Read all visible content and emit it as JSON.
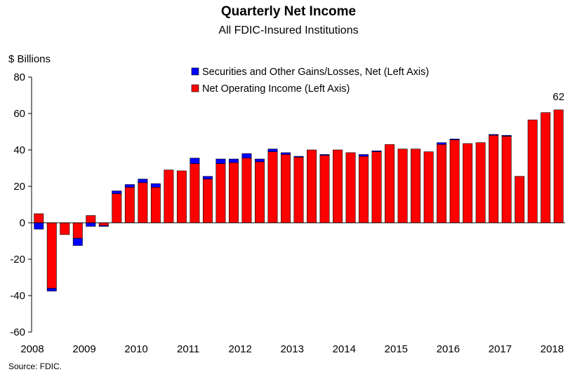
{
  "chart_data": {
    "type": "bar",
    "stacked": true,
    "title": "Quarterly Net Income",
    "subtitle": "All FDIC-Insured Institutions",
    "ylabel": "$ Billions",
    "source": "Source:  FDIC.",
    "ylim": [
      -60,
      80
    ],
    "yticks": [
      80,
      60,
      40,
      20,
      0,
      -20,
      -40,
      -60
    ],
    "xtick_labels": [
      "2008",
      "2009",
      "2010",
      "2011",
      "2012",
      "2013",
      "2014",
      "2015",
      "2016",
      "2017",
      "2018"
    ],
    "grid": false,
    "legend_position": "top",
    "annotation": {
      "text": "62",
      "index": 40
    },
    "series": [
      {
        "name": "Securities and Other Gains/Losses, Net  (Left Axis)",
        "color": "#0000FF",
        "values": [
          -3.5,
          -1.5,
          0,
          -4,
          -2,
          -0.5,
          1.5,
          1.5,
          2,
          2,
          0,
          0,
          3,
          1.5,
          2.5,
          2,
          2.5,
          1.5,
          1.5,
          1,
          0.5,
          0,
          0.5,
          0,
          0,
          1,
          0.5,
          0,
          0,
          0,
          0,
          1,
          0.5,
          0,
          0,
          0.5,
          0.5,
          0,
          0,
          0,
          0
        ]
      },
      {
        "name": "Net Operating Income (Left Axis)",
        "color": "#FF0000",
        "values": [
          5,
          -36,
          -6.5,
          -8.5,
          4,
          -1.5,
          16,
          19.5,
          22,
          19.5,
          29,
          28.5,
          32.5,
          24,
          32.5,
          33,
          35.5,
          33.5,
          39,
          37.5,
          36,
          40,
          37,
          40,
          38.5,
          36.5,
          39,
          43,
          40.5,
          40.5,
          39,
          43,
          45.5,
          43.5,
          44,
          48,
          47.5,
          25.5,
          56.5,
          60.5,
          62
        ]
      }
    ]
  }
}
